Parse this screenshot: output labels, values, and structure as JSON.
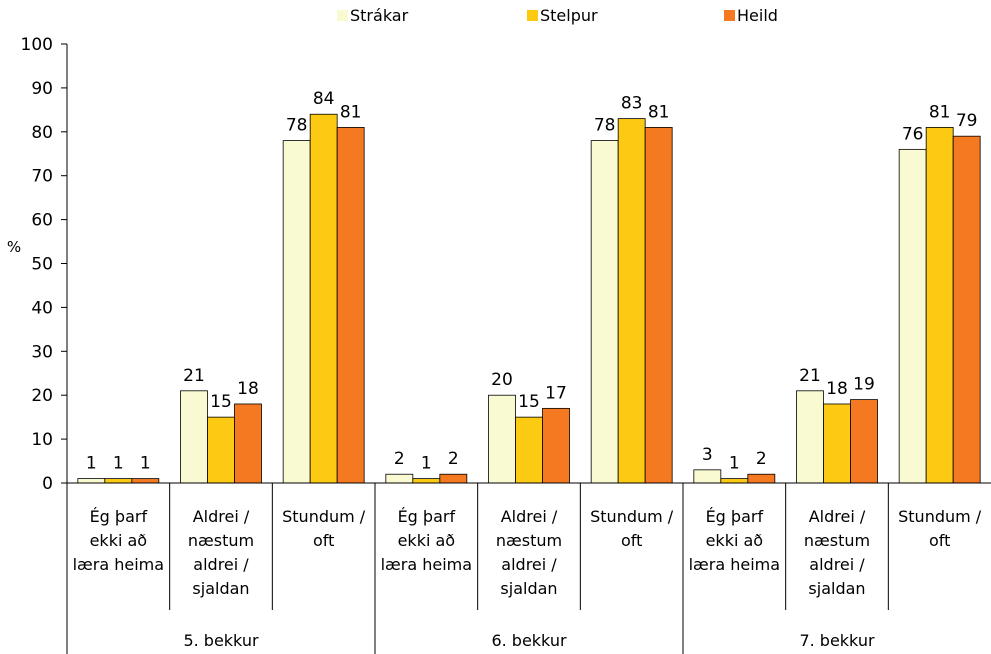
{
  "chart_data": {
    "type": "bar",
    "ylabel": "%",
    "ylim": [
      0,
      100
    ],
    "yticks": [
      0,
      10,
      20,
      30,
      40,
      50,
      60,
      70,
      80,
      90,
      100
    ],
    "legend": {
      "placement": "top"
    },
    "groups": [
      {
        "label": "5. bekkur",
        "categories": [
          [
            "Ég þarf",
            "ekki að",
            "læra heima"
          ],
          [
            "Aldrei /",
            "næstum",
            "aldrei /",
            "sjaldan"
          ],
          [
            "Stundum /",
            "oft"
          ]
        ]
      },
      {
        "label": "6. bekkur",
        "categories": [
          [
            "Ég þarf",
            "ekki að",
            "læra heima"
          ],
          [
            "Aldrei /",
            "næstum",
            "aldrei /",
            "sjaldan"
          ],
          [
            "Stundum /",
            "oft"
          ]
        ]
      },
      {
        "label": "7. bekkur",
        "categories": [
          [
            "Ég þarf",
            "ekki að",
            "læra heima"
          ],
          [
            "Aldrei /",
            "næstum",
            "aldrei /",
            "sjaldan"
          ],
          [
            "Stundum /",
            "oft"
          ]
        ]
      }
    ],
    "series": [
      {
        "name": "Strákar",
        "color": "#fafad2",
        "values": [
          1,
          21,
          78,
          2,
          20,
          78,
          3,
          21,
          76
        ]
      },
      {
        "name": "Stelpur",
        "color": "#fcca12",
        "values": [
          1,
          15,
          84,
          1,
          15,
          83,
          1,
          18,
          81
        ]
      },
      {
        "name": "Heild",
        "color": "#f47920",
        "values": [
          1,
          18,
          81,
          2,
          17,
          81,
          2,
          19,
          79
        ]
      }
    ]
  }
}
